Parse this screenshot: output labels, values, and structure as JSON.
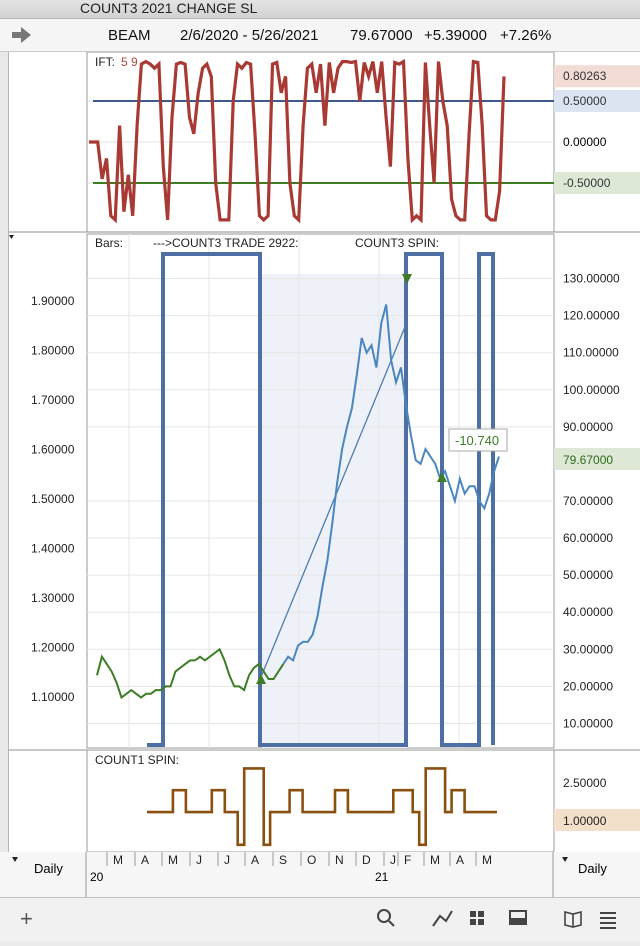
{
  "window": {
    "title": "COUNT3 2021 CHANGE SL"
  },
  "quote": {
    "symbol": "BEAM",
    "range": "2/6/2020 - 5/26/2021",
    "last": "79.67000",
    "change": "+5.39000",
    "change_pct": "+7.26%"
  },
  "ift_panel": {
    "label": "IFT:",
    "params": "5 9",
    "axis_ticks": [
      "0.50000",
      "0.00000"
    ],
    "badges": [
      {
        "text": "0.80263",
        "value": 0.80263,
        "color": "#a03a2e"
      },
      {
        "text": "0.50000",
        "value": 0.5,
        "color": "#3d5a8c"
      },
      {
        "text": "-0.50000",
        "value": -0.5,
        "color": "#3e7d22"
      }
    ],
    "chart_data": {
      "type": "line",
      "ylim": [
        -1.0,
        1.0
      ],
      "reference_lines": [
        0.5,
        -0.5
      ],
      "series": [
        {
          "values": [
            0,
            0,
            0,
            -0.45,
            -0.2,
            -0.9,
            -0.95,
            0.2,
            -0.85,
            -0.4,
            -0.9,
            0.2,
            0.95,
            0.98,
            0.95,
            0.9,
            0.95,
            -0.3,
            -0.95,
            0.3,
            0.95,
            0.97,
            0.95,
            0.3,
            0.1,
            0.6,
            0.9,
            0.95,
            0.8,
            -0.5,
            -0.95,
            -0.95,
            -0.95,
            0.5,
            0.95,
            0.9,
            0.97,
            0.95,
            0.1,
            -0.9,
            -0.95,
            -0.9,
            0.95,
            0.97,
            0.6,
            0.8,
            -0.5,
            -0.9,
            -0.95,
            0.2,
            0.9,
            0.95,
            0.6,
            0.95,
            0.2,
            0.97,
            0.6,
            0.9,
            0.98,
            0.98,
            0.97,
            0.98,
            0.5,
            0.97,
            0.8,
            0.98,
            0.6,
            0.98,
            0.3,
            -0.3,
            0.97,
            0.95,
            0.98,
            -0.2,
            -0.95,
            -0.9,
            -0.95,
            0.97,
            0.2,
            -0.5,
            0.98,
            0.5,
            0.2,
            -0.7,
            -0.9,
            -0.95,
            -0.95,
            0.1,
            0.98,
            0.97,
            0.2,
            -0.9,
            -0.95,
            -0.95,
            -0.6,
            0.8
          ]
        }
      ]
    }
  },
  "main_panel": {
    "legend_bars": "Bars:",
    "legend_trade": "--->COUNT3 TRADE 2922:",
    "legend_spin": "COUNT3 SPIN:",
    "left_ticks": [
      "1.90000",
      "1.80000",
      "1.70000",
      "1.60000",
      "1.50000",
      "1.40000",
      "1.30000",
      "1.20000",
      "1.10000"
    ],
    "right_ticks": [
      "130.00000",
      "120.00000",
      "110.00000",
      "100.00000",
      "90.00000",
      "70.00000",
      "60.00000",
      "50.00000",
      "40.00000",
      "30.00000",
      "20.00000",
      "10.00000"
    ],
    "last_badge": "79.67000",
    "trade_label": "-10.740",
    "chart_data": {
      "type": "line",
      "ylim": [
        5,
        135
      ],
      "price_series": {
        "name": "BEAM",
        "values": [
          23,
          28,
          26,
          24,
          21,
          17,
          18,
          19,
          18,
          17,
          18,
          18,
          19,
          19,
          20,
          20,
          24,
          25,
          26,
          27,
          27,
          28,
          27,
          28,
          29,
          30,
          27,
          23,
          20,
          20,
          19,
          23,
          25,
          26,
          24,
          22,
          22,
          24,
          26,
          28,
          27,
          31,
          32,
          32,
          34,
          39,
          47,
          54,
          64,
          75,
          84,
          90,
          95,
          104,
          114,
          110,
          112,
          106,
          118,
          123,
          108,
          102,
          106,
          96,
          88,
          81,
          80,
          84,
          82,
          80,
          76,
          78,
          74,
          70,
          76,
          72,
          74,
          74,
          70,
          68,
          72,
          78,
          82
        ]
      },
      "trade_lines": [
        {
          "x0_index": 38,
          "y0": 19,
          "x1_index": 116,
          "y1": 120
        }
      ]
    }
  },
  "count1_panel": {
    "label": "COUNT1 SPIN:",
    "right_ticks": [
      "2.50000"
    ],
    "last_badge": "1.00000",
    "chart_data": {
      "type": "line",
      "ylim": [
        -0.6,
        3.2
      ],
      "series": [
        {
          "values": [
            1,
            1,
            1,
            1,
            2,
            2,
            1,
            1,
            1,
            1,
            2,
            2,
            1,
            1,
            -0.5,
            3,
            3,
            3,
            -0.5,
            1,
            1,
            1,
            2,
            2,
            1,
            1,
            1,
            1,
            1,
            2,
            2,
            1,
            1,
            1,
            1,
            1,
            1,
            1,
            2,
            2,
            2,
            1,
            -0.5,
            3,
            3,
            3,
            1,
            2,
            2,
            1,
            1,
            1,
            1,
            1,
            1
          ]
        }
      ]
    }
  },
  "time_axis": {
    "left_label": "Daily",
    "right_label": "Daily",
    "months": [
      "M",
      "A",
      "M",
      "J",
      "J",
      "A",
      "S",
      "O",
      "N",
      "D",
      "J",
      "F",
      "M",
      "A",
      "M"
    ],
    "years": [
      "20",
      "21"
    ]
  }
}
